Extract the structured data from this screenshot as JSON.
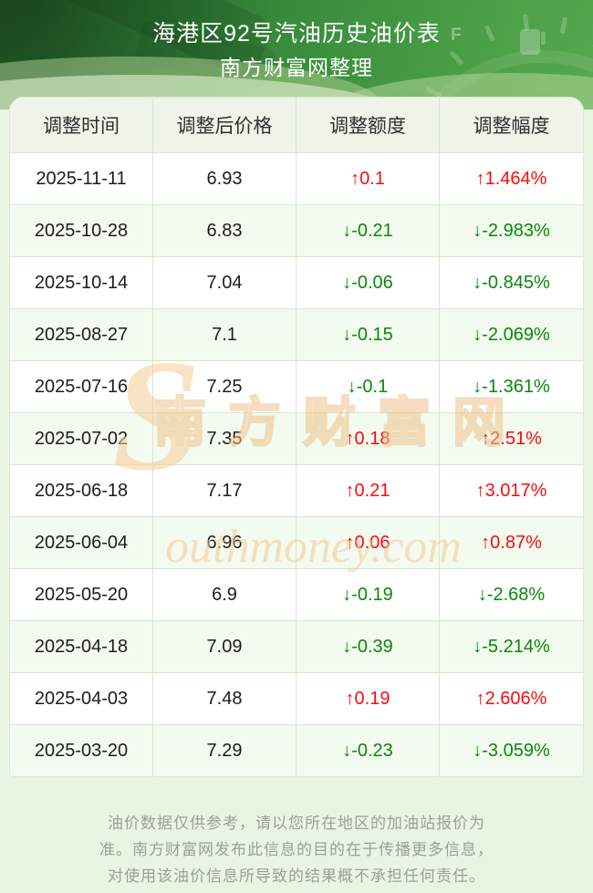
{
  "banner": {
    "title": "海港区92号汽油历史油价表",
    "subtitle": "南方财富网整理"
  },
  "table": {
    "headers": [
      "调整时间",
      "调整后价格",
      "调整额度",
      "调整幅度"
    ],
    "rows": [
      {
        "date": "2025-11-11",
        "price": "6.93",
        "change": "↑0.1",
        "pct": "↑1.464%",
        "dir": "up"
      },
      {
        "date": "2025-10-28",
        "price": "6.83",
        "change": "↓-0.21",
        "pct": "↓-2.983%",
        "dir": "down"
      },
      {
        "date": "2025-10-14",
        "price": "7.04",
        "change": "↓-0.06",
        "pct": "↓-0.845%",
        "dir": "down"
      },
      {
        "date": "2025-08-27",
        "price": "7.1",
        "change": "↓-0.15",
        "pct": "↓-2.069%",
        "dir": "down"
      },
      {
        "date": "2025-07-16",
        "price": "7.25",
        "change": "↓-0.1",
        "pct": "↓-1.361%",
        "dir": "down"
      },
      {
        "date": "2025-07-02",
        "price": "7.35",
        "change": "↑0.18",
        "pct": "↑2.51%",
        "dir": "up"
      },
      {
        "date": "2025-06-18",
        "price": "7.17",
        "change": "↑0.21",
        "pct": "↑3.017%",
        "dir": "up"
      },
      {
        "date": "2025-06-04",
        "price": "6.96",
        "change": "↑0.06",
        "pct": "↑0.87%",
        "dir": "up"
      },
      {
        "date": "2025-05-20",
        "price": "6.9",
        "change": "↓-0.19",
        "pct": "↓-2.68%",
        "dir": "down"
      },
      {
        "date": "2025-04-18",
        "price": "7.09",
        "change": "↓-0.39",
        "pct": "↓-5.214%",
        "dir": "down"
      },
      {
        "date": "2025-04-03",
        "price": "7.48",
        "change": "↑0.19",
        "pct": "↑2.606%",
        "dir": "up"
      },
      {
        "date": "2025-03-20",
        "price": "7.29",
        "change": "↓-0.23",
        "pct": "↓-3.059%",
        "dir": "down"
      }
    ]
  },
  "watermark": {
    "initial": "S",
    "cn": "南方财富网",
    "en": "outhmoney.com"
  },
  "footer": {
    "lines": [
      "油价数据仅供参考，请以您所在地区的加油站报价为",
      "准。南方财富网发布此信息的目的在于传播更多信息，",
      "对使用该油价信息所导致的结果概不承担任何责任。"
    ]
  },
  "banner_icons": {
    "gauge_full_label": "F"
  },
  "colors": {
    "up_red": "#f60d0d",
    "down_green": "#0b870b",
    "banner_green_dark": "#235f2a",
    "banner_green_light": "#57a850",
    "page_bg": "#e9f4e2",
    "row_tint": "#f3faef",
    "watermark_orange": "#f0c38b"
  }
}
